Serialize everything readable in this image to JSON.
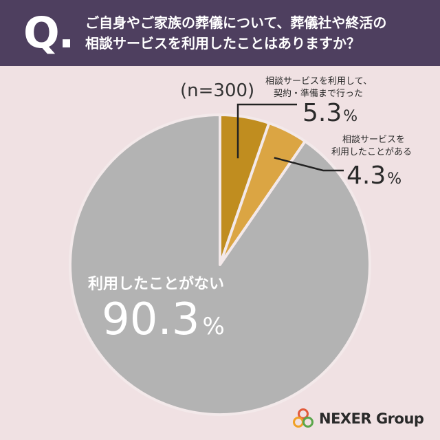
{
  "header": {
    "q_mark": "Q.",
    "question_line1": "ご自身やご家族の葬儀について、葬儀社や終活の",
    "question_line2": "相談サービスを利用したことはありますか？"
  },
  "sample_label": "(n=300)",
  "chart_data": {
    "type": "pie",
    "start_angle_deg": 0,
    "direction": "clockwise",
    "slices": [
      {
        "label_line1": "相談サービスを利用して、",
        "label_line2": "契約・準備まで行った",
        "value": 5.3,
        "value_text": "5.3",
        "unit": "%",
        "color": "#c08d1f"
      },
      {
        "label_line1": "相談サービスを",
        "label_line2": "利用したことがある",
        "value": 4.3,
        "value_text": "4.3",
        "unit": "%",
        "color": "#dba543"
      },
      {
        "label_line1": "利用したことがない",
        "label_line2": "",
        "value": 90.3,
        "value_text": "90.3",
        "unit": "%",
        "color": "#b3b3b3"
      }
    ]
  },
  "logo": {
    "text": "NEXER Group"
  },
  "colors": {
    "background": "#f0e1e3",
    "header": "#4e3f5f",
    "slice_border": "#f3e9ea"
  }
}
